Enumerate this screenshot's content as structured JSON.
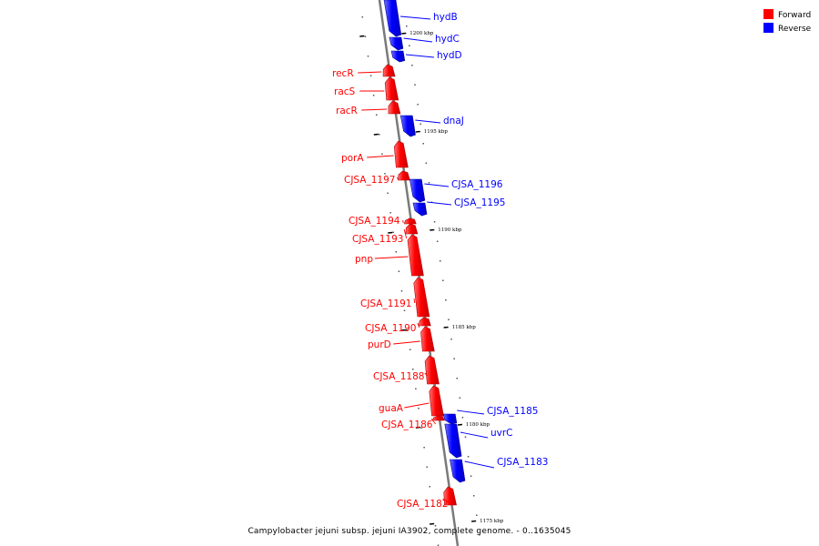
{
  "caption": "Campylobacter jejuni subsp. jejuni IA3902, complete genome. - 0..1635045",
  "legend": [
    {
      "label": "Forward",
      "color": "#ff0000"
    },
    {
      "label": "Reverse",
      "color": "#0000ff"
    }
  ],
  "colors": {
    "forward": "#ff0000",
    "reverse": "#0000ff",
    "backbone": "#7a7a7a"
  },
  "ticks": [
    {
      "label": "1200 kbp"
    },
    {
      "label": "1195 kbp"
    },
    {
      "label": "1190 kbp"
    },
    {
      "label": "1185 kbp"
    },
    {
      "label": "1180 kbp"
    },
    {
      "label": "1175 kbp"
    }
  ],
  "genes": [
    {
      "name": "hydB",
      "strand": "reverse"
    },
    {
      "name": "hydC",
      "strand": "reverse"
    },
    {
      "name": "hydD",
      "strand": "reverse"
    },
    {
      "name": "recR",
      "strand": "forward"
    },
    {
      "name": "racS",
      "strand": "forward"
    },
    {
      "name": "racR",
      "strand": "forward"
    },
    {
      "name": "dnaJ",
      "strand": "reverse"
    },
    {
      "name": "porA",
      "strand": "forward"
    },
    {
      "name": "CJSA_1197",
      "strand": "forward"
    },
    {
      "name": "CJSA_1196",
      "strand": "reverse"
    },
    {
      "name": "CJSA_1195",
      "strand": "reverse"
    },
    {
      "name": "CJSA_1194",
      "strand": "forward"
    },
    {
      "name": "CJSA_1193",
      "strand": "forward"
    },
    {
      "name": "pnp",
      "strand": "forward"
    },
    {
      "name": "CJSA_1191",
      "strand": "forward"
    },
    {
      "name": "CJSA_1190",
      "strand": "forward"
    },
    {
      "name": "purD",
      "strand": "forward"
    },
    {
      "name": "CJSA_1188",
      "strand": "forward"
    },
    {
      "name": "guaA",
      "strand": "forward"
    },
    {
      "name": "CJSA_1186",
      "strand": "forward"
    },
    {
      "name": "CJSA_1185",
      "strand": "reverse"
    },
    {
      "name": "uvrC",
      "strand": "reverse"
    },
    {
      "name": "CJSA_1183",
      "strand": "reverse"
    },
    {
      "name": "CJSA_1182",
      "strand": "forward"
    }
  ]
}
